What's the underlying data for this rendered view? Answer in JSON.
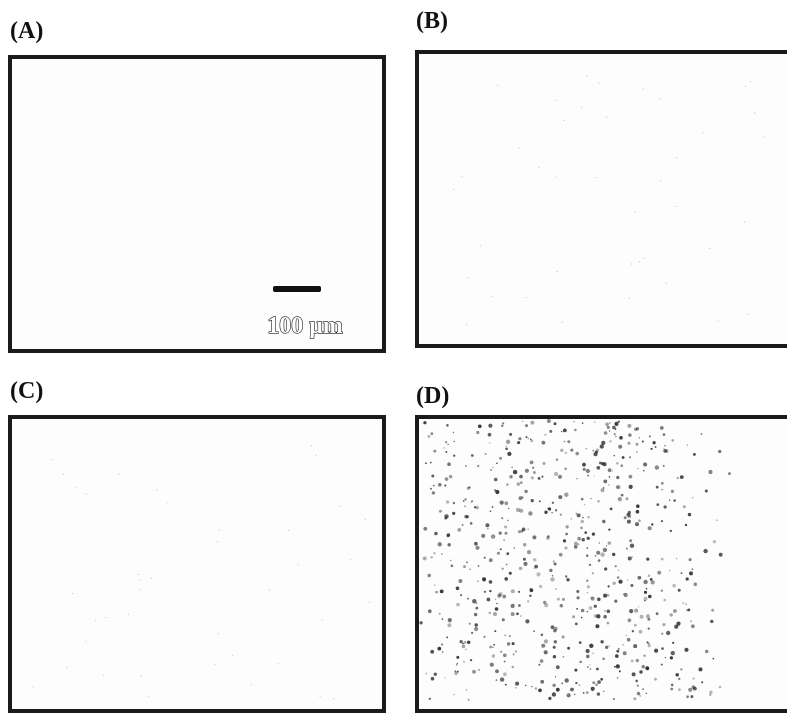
{
  "panels": [
    {
      "label": "(A)"
    },
    {
      "label": "(B)"
    },
    {
      "label": "(C)"
    },
    {
      "label": "(D)"
    }
  ],
  "scale_bar": {
    "label": "100 μm"
  }
}
